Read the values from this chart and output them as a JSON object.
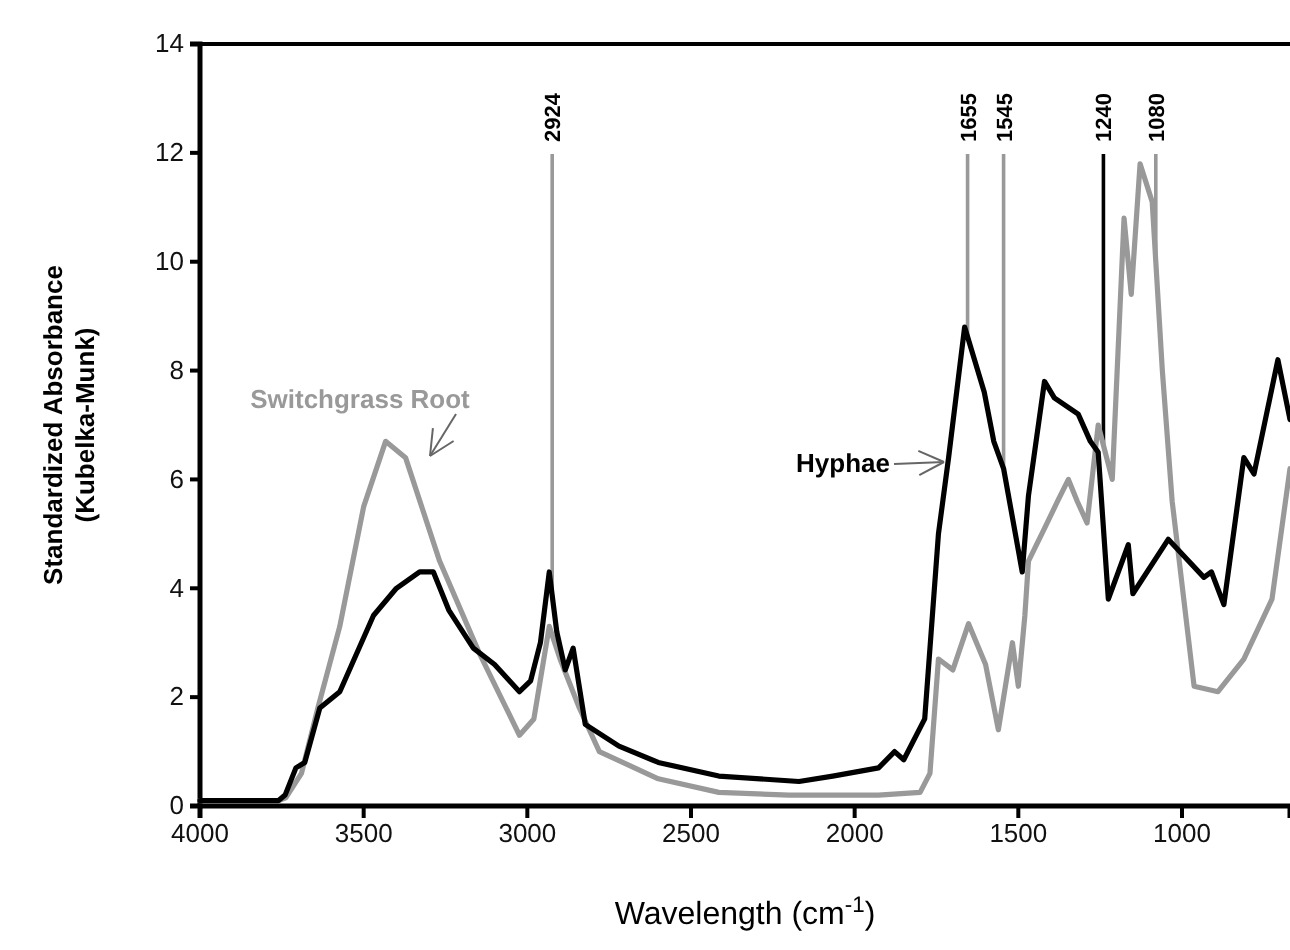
{
  "chart_data": {
    "type": "line",
    "xlabel": "Wavelength (cm$^{-1}$)",
    "ylabel": "Standardized Absorbance\n(Kubelka-Munk)",
    "xlim": [
      4000,
      670
    ],
    "xticks": [
      4000,
      3500,
      3000,
      2500,
      2000,
      1500,
      1000
    ],
    "ylim": [
      0,
      14
    ],
    "yticks": [
      0,
      2,
      4,
      6,
      8,
      10,
      12,
      14
    ],
    "grid": false,
    "legend": false,
    "marker": "none",
    "line_style": "solid",
    "series": [
      {
        "name": "Switchgrass Root",
        "color": "#999999",
        "x": [
          4000,
          3760,
          3738,
          3690,
          3640,
          3573,
          3500,
          3433,
          3372,
          3268,
          3146,
          3024,
          2980,
          2933,
          2900,
          2841,
          2780,
          2600,
          2415,
          2200,
          1927,
          1800,
          1770,
          1744,
          1700,
          1652,
          1600,
          1561,
          1518,
          1500,
          1480,
          1469,
          1420,
          1380,
          1347,
          1320,
          1290,
          1256,
          1213,
          1177,
          1155,
          1128,
          1091,
          1060,
          1030,
          963,
          890,
          811,
          725,
          670
        ],
        "values": [
          0.1,
          0.1,
          0.15,
          0.6,
          1.8,
          3.3,
          5.5,
          6.7,
          6.4,
          4.5,
          2.8,
          1.3,
          1.6,
          3.3,
          2.7,
          1.8,
          1.0,
          0.5,
          0.25,
          0.2,
          0.2,
          0.25,
          0.6,
          2.7,
          2.5,
          3.35,
          2.6,
          1.4,
          3.0,
          2.2,
          3.5,
          4.5,
          5.1,
          5.6,
          6.0,
          5.6,
          5.2,
          7.0,
          6.0,
          10.8,
          9.4,
          11.8,
          11.1,
          8.0,
          5.6,
          2.2,
          2.1,
          2.7,
          3.8,
          6.2
        ]
      },
      {
        "name": "Hyphae",
        "color": "#000000",
        "x": [
          4000,
          3760,
          3740,
          3707,
          3680,
          3634,
          3573,
          3470,
          3400,
          3329,
          3287,
          3240,
          3165,
          3100,
          3024,
          2990,
          2960,
          2933,
          2910,
          2884,
          2860,
          2823,
          2720,
          2600,
          2415,
          2170,
          2067,
          1927,
          1878,
          1850,
          1786,
          1744,
          1713,
          1664,
          1604,
          1575,
          1545,
          1488,
          1469,
          1420,
          1390,
          1317,
          1280,
          1256,
          1225,
          1164,
          1150,
          1042,
          933,
          910,
          872,
          811,
          780,
          707,
          670
        ],
        "values": [
          0.1,
          0.1,
          0.2,
          0.7,
          0.8,
          1.8,
          2.1,
          3.5,
          4.0,
          4.3,
          4.3,
          3.6,
          2.9,
          2.6,
          2.1,
          2.3,
          3.0,
          4.3,
          3.2,
          2.5,
          2.9,
          1.5,
          1.1,
          0.8,
          0.55,
          0.45,
          0.55,
          0.7,
          1.0,
          0.85,
          1.6,
          5.0,
          6.4,
          8.8,
          7.6,
          6.7,
          6.2,
          4.3,
          5.7,
          7.8,
          7.5,
          7.2,
          6.7,
          6.5,
          3.8,
          4.8,
          3.9,
          4.9,
          4.2,
          4.3,
          3.7,
          6.4,
          6.1,
          8.2,
          7.1
        ]
      }
    ],
    "ref_lines": [
      {
        "axis": "x",
        "value": 2924,
        "label": "2924",
        "color": "#999999"
      },
      {
        "axis": "x",
        "value": 1655,
        "label": "1655",
        "color": "#999999"
      },
      {
        "axis": "x",
        "value": 1545,
        "label": "1545",
        "color": "#999999"
      },
      {
        "axis": "x",
        "value": 1240,
        "label": "1240",
        "color": "#000000"
      },
      {
        "axis": "x",
        "value": 1080,
        "label": "1080",
        "color": "#999999"
      }
    ]
  }
}
